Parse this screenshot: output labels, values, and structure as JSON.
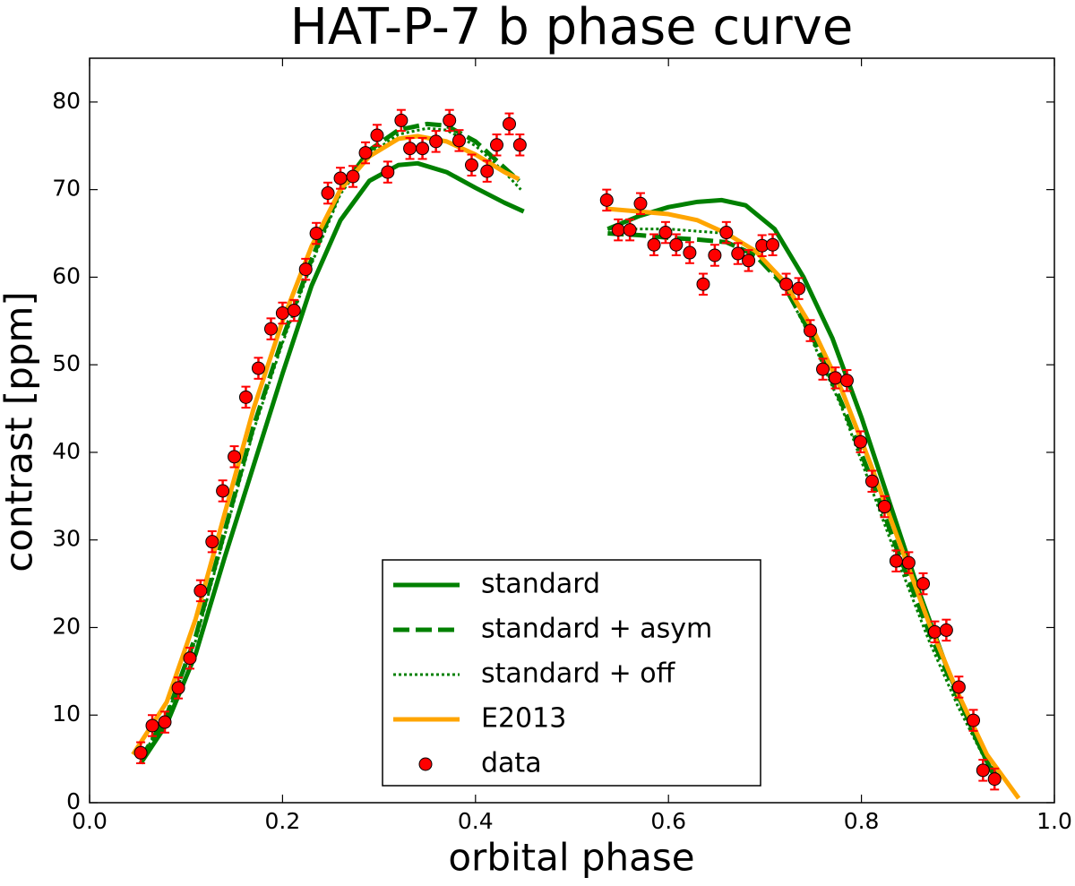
{
  "chart_data": {
    "type": "line",
    "title": "HAT-P-7 b phase curve",
    "x_label": "orbital phase",
    "y_label": "contrast [ppm]",
    "xlim": [
      0,
      1
    ],
    "ylim": [
      0,
      85
    ],
    "xticks": [
      {
        "value": 0,
        "label": "0.0"
      },
      0.2,
      0.4,
      0.6,
      0.8,
      {
        "value": 1,
        "label": "1.0"
      }
    ],
    "yticks": [
      0,
      10,
      20,
      30,
      40,
      50,
      60,
      70,
      80
    ],
    "legend": "lower center",
    "series": [
      {
        "name": "standard",
        "color": "#008000",
        "style": "solid",
        "x": [
          0.053,
          0.08,
          0.11,
          0.14,
          0.17,
          0.2,
          0.23,
          0.26,
          0.29,
          0.32,
          0.34,
          0.37,
          0.4,
          0.43,
          0.45,
          0.5,
          0.537,
          0.57,
          0.6,
          0.63,
          0.655,
          0.68,
          0.71,
          0.74,
          0.77,
          0.8,
          0.83,
          0.86,
          0.89,
          0.92,
          0.94
        ],
        "values": [
          4.5,
          9,
          17,
          28,
          38.5,
          49,
          59,
          66.5,
          71,
          72.8,
          73,
          72,
          70.2,
          68.5,
          67.5,
          null,
          65.5,
          67,
          68,
          68.6,
          68.8,
          68.2,
          65.5,
          60,
          53,
          44,
          34,
          24,
          15,
          7,
          2.5
        ]
      },
      {
        "name": "standard + asym",
        "color": "#008000",
        "style": "dashed",
        "x": [
          0.053,
          0.08,
          0.11,
          0.14,
          0.17,
          0.2,
          0.23,
          0.26,
          0.29,
          0.32,
          0.35,
          0.37,
          0.4,
          0.43,
          0.445,
          0.5,
          0.537,
          0.57,
          0.6,
          0.63,
          0.66,
          0.69,
          0.72,
          0.75,
          0.78,
          0.81,
          0.84,
          0.87,
          0.9,
          0.93,
          0.945
        ],
        "values": [
          5,
          10,
          19,
          31,
          43,
          53,
          62,
          70,
          74.5,
          76.8,
          77.5,
          77.3,
          75.5,
          72.5,
          71,
          null,
          65,
          64.8,
          64.5,
          64.3,
          64,
          62.5,
          59,
          53,
          45.5,
          37,
          28,
          19.5,
          12,
          5,
          2
        ]
      },
      {
        "name": "standard + off",
        "color": "#008000",
        "style": "dotted",
        "x": [
          0.053,
          0.08,
          0.11,
          0.14,
          0.17,
          0.2,
          0.23,
          0.26,
          0.29,
          0.32,
          0.35,
          0.37,
          0.4,
          0.43,
          0.447,
          0.5,
          0.537,
          0.6,
          0.66,
          0.69,
          0.72,
          0.75,
          0.78,
          0.81,
          0.84,
          0.87,
          0.9,
          0.93
        ],
        "values": [
          5,
          10,
          18.5,
          30.5,
          42.5,
          52.5,
          61.5,
          69.5,
          74,
          76.3,
          77,
          76.8,
          75,
          72,
          70,
          null,
          65.5,
          65.5,
          65,
          63,
          59,
          52.5,
          45,
          36,
          27,
          18.5,
          11,
          4.5
        ]
      },
      {
        "name": "E2013",
        "color": "#ffa500",
        "style": "solid",
        "x": [
          0.045,
          0.08,
          0.11,
          0.14,
          0.17,
          0.2,
          0.23,
          0.26,
          0.29,
          0.32,
          0.34,
          0.37,
          0.4,
          0.43,
          0.445,
          0.5,
          0.537,
          0.57,
          0.6,
          0.63,
          0.66,
          0.69,
          0.72,
          0.75,
          0.78,
          0.81,
          0.84,
          0.87,
          0.9,
          0.93,
          0.963
        ],
        "values": [
          5.5,
          11.5,
          21,
          33,
          45,
          55,
          63.5,
          70,
          73.8,
          75.8,
          76.1,
          75.5,
          74,
          72,
          71.2,
          null,
          67.8,
          67.5,
          67.2,
          66.5,
          65,
          63,
          59.5,
          54,
          47,
          38.5,
          29.5,
          20.5,
          12.5,
          5.5,
          0.5
        ]
      },
      {
        "name": "data",
        "color": "#ff0000",
        "style": "markers",
        "x": [
          0.053,
          0.065,
          0.078,
          0.092,
          0.104,
          0.115,
          0.127,
          0.138,
          0.15,
          0.162,
          0.175,
          0.188,
          0.2,
          0.212,
          0.224,
          0.235,
          0.247,
          0.26,
          0.273,
          0.286,
          0.298,
          0.309,
          0.323,
          0.332,
          0.345,
          0.359,
          0.373,
          0.383,
          0.396,
          0.412,
          0.422,
          0.435,
          0.446,
          0.536,
          0.548,
          0.56,
          0.571,
          0.585,
          0.597,
          0.608,
          0.622,
          0.636,
          0.648,
          0.66,
          0.672,
          0.683,
          0.697,
          0.708,
          0.722,
          0.735,
          0.747,
          0.76,
          0.773,
          0.785,
          0.799,
          0.811,
          0.824,
          0.836,
          0.849,
          0.864,
          0.876,
          0.888,
          0.901,
          0.916,
          0.926,
          0.938
        ],
        "values": [
          5.7,
          8.8,
          9.2,
          13.1,
          16.5,
          24.2,
          29.8,
          35.6,
          39.5,
          46.3,
          49.6,
          54.1,
          55.9,
          56.2,
          60.9,
          65,
          69.6,
          71.3,
          71.5,
          74.2,
          76.2,
          72,
          77.9,
          74.7,
          74.7,
          75.5,
          77.9,
          75.6,
          72.8,
          72.1,
          75.1,
          77.5,
          75.1,
          68.8,
          65.4,
          65.4,
          68.4,
          63.7,
          65.1,
          63.7,
          62.8,
          59.2,
          62.5,
          65.1,
          62.7,
          61.9,
          63.6,
          63.7,
          59.2,
          58.7,
          53.9,
          49.5,
          48.5,
          48.2,
          41.2,
          36.7,
          33.8,
          27.6,
          27.4,
          25,
          19.5,
          19.7,
          13.2,
          9.4,
          3.7,
          2.7
        ],
        "errors": [
          1.2,
          1.2,
          1.2,
          1.2,
          1.2,
          1.2,
          1.2,
          1.2,
          1.2,
          1.2,
          1.2,
          1.2,
          1.2,
          1.2,
          1.2,
          1.2,
          1.2,
          1.2,
          1.2,
          1.2,
          1.2,
          1.2,
          1.2,
          1.2,
          1.2,
          1.2,
          1.2,
          1.2,
          1.2,
          1.2,
          1.2,
          1.2,
          1.2,
          1.2,
          1.2,
          1.2,
          1.2,
          1.2,
          1.2,
          1.2,
          1.2,
          1.2,
          1.2,
          1.2,
          1.2,
          1.2,
          1.2,
          1.2,
          1.2,
          1.2,
          1.2,
          1.2,
          1.2,
          1.2,
          1.2,
          1.2,
          1.2,
          1.2,
          1.2,
          1.2,
          1.2,
          1.2,
          1.2,
          1.2,
          1.2,
          1.2
        ]
      }
    ]
  }
}
